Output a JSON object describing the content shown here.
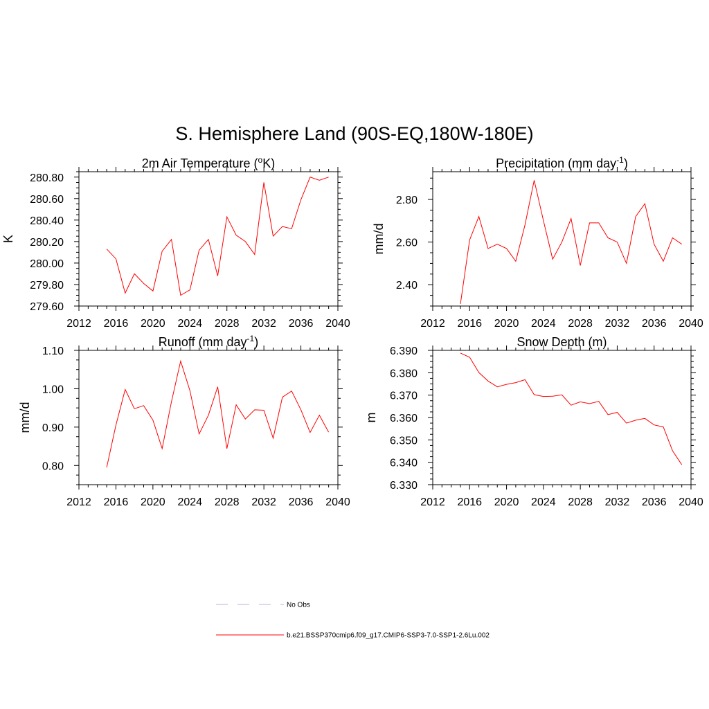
{
  "figure": {
    "title": "S. Hemisphere Land (90S-EQ,180W-180E)"
  },
  "legend": {
    "entries": [
      {
        "label": "No Obs",
        "color": "#b3b3e6",
        "style": "dashed"
      },
      {
        "label": "b.e21.BSSP370cmip6.f09_g17.CMIP6-SSP3-7.0-SSP1-2.6Lu.002",
        "color": "#ff0000",
        "style": "solid"
      }
    ]
  },
  "chart_data": [
    {
      "type": "line",
      "title": "2m Air Temperature (°K)",
      "title_base": "2m Air Temperature (",
      "title_sup": "o",
      "title_end": "K)",
      "ylabel": "K",
      "xlim": [
        2012,
        2040
      ],
      "ylim": [
        279.6,
        280.85
      ],
      "xticks": [
        2012,
        2016,
        2020,
        2024,
        2028,
        2032,
        2036,
        2040
      ],
      "yticks": [
        279.6,
        279.8,
        280.0,
        280.2,
        280.4,
        280.6,
        280.8
      ],
      "ytick_labels": [
        "279.60",
        "279.80",
        "280.00",
        "280.20",
        "280.40",
        "280.60",
        "280.80"
      ],
      "x": [
        2015,
        2016,
        2017,
        2018,
        2019,
        2020,
        2021,
        2022,
        2023,
        2024,
        2025,
        2026,
        2027,
        2028,
        2029,
        2030,
        2031,
        2032,
        2033,
        2034,
        2035,
        2036,
        2037,
        2038,
        2039
      ],
      "series": [
        {
          "color": "#ff0000",
          "values": [
            280.13,
            280.04,
            279.72,
            279.9,
            279.81,
            279.74,
            280.11,
            280.22,
            279.7,
            279.75,
            280.12,
            280.22,
            279.88,
            280.43,
            280.26,
            280.2,
            280.08,
            280.75,
            280.25,
            280.34,
            280.32,
            280.59,
            280.8,
            280.77,
            280.8
          ]
        }
      ]
    },
    {
      "type": "line",
      "title": "Precipitation (mm day-1)",
      "title_base": "Precipitation (mm day",
      "title_sup": "-1",
      "title_end": ")",
      "ylabel": "mm/d",
      "xlim": [
        2012,
        2040
      ],
      "ylim": [
        2.3,
        2.93
      ],
      "xticks": [
        2012,
        2016,
        2020,
        2024,
        2028,
        2032,
        2036,
        2040
      ],
      "yticks": [
        2.4,
        2.6,
        2.8
      ],
      "ytick_labels": [
        "2.40",
        "2.60",
        "2.80"
      ],
      "x": [
        2015,
        2016,
        2017,
        2018,
        2019,
        2020,
        2021,
        2022,
        2023,
        2024,
        2025,
        2026,
        2027,
        2028,
        2029,
        2030,
        2031,
        2032,
        2033,
        2034,
        2035,
        2036,
        2037,
        2038,
        2039
      ],
      "series": [
        {
          "color": "#ff0000",
          "values": [
            2.31,
            2.61,
            2.72,
            2.57,
            2.59,
            2.57,
            2.51,
            2.68,
            2.89,
            2.7,
            2.52,
            2.6,
            2.71,
            2.49,
            2.69,
            2.69,
            2.62,
            2.6,
            2.5,
            2.72,
            2.78,
            2.59,
            2.51,
            2.62,
            2.59
          ]
        }
      ]
    },
    {
      "type": "line",
      "title": "Runoff (mm day-1)",
      "title_base": "Runoff (mm day",
      "title_sup": "-1",
      "title_end": ")",
      "ylabel": "mm/d",
      "xlim": [
        2012,
        2040
      ],
      "ylim": [
        0.75,
        1.1
      ],
      "xticks": [
        2012,
        2016,
        2020,
        2024,
        2028,
        2032,
        2036,
        2040
      ],
      "yticks": [
        0.8,
        0.9,
        1.0,
        1.1
      ],
      "ytick_labels": [
        "0.80",
        "0.90",
        "1.00",
        "1.10"
      ],
      "x": [
        2015,
        2016,
        2017,
        2018,
        2019,
        2020,
        2021,
        2022,
        2023,
        2024,
        2025,
        2026,
        2027,
        2028,
        2029,
        2030,
        2031,
        2032,
        2033,
        2034,
        2035,
        2036,
        2037,
        2038,
        2039
      ],
      "series": [
        {
          "color": "#ff0000",
          "values": [
            0.795,
            0.905,
            0.998,
            0.948,
            0.956,
            0.918,
            0.844,
            0.966,
            1.072,
            0.995,
            0.882,
            0.931,
            1.005,
            0.844,
            0.958,
            0.921,
            0.945,
            0.944,
            0.871,
            0.978,
            0.994,
            0.945,
            0.886,
            0.931,
            0.887
          ]
        }
      ]
    },
    {
      "type": "line",
      "title": "Snow Depth (m)",
      "title_base": "Snow Depth (m)",
      "title_sup": "",
      "title_end": "",
      "ylabel": "m",
      "xlim": [
        2012,
        2040
      ],
      "ylim": [
        6.33,
        6.39
      ],
      "xticks": [
        2012,
        2016,
        2020,
        2024,
        2028,
        2032,
        2036,
        2040
      ],
      "yticks": [
        6.33,
        6.34,
        6.35,
        6.36,
        6.37,
        6.38,
        6.39
      ],
      "ytick_labels": [
        "6.330",
        "6.340",
        "6.350",
        "6.360",
        "6.370",
        "6.380",
        "6.390"
      ],
      "x": [
        2015,
        2016,
        2017,
        2018,
        2019,
        2020,
        2021,
        2022,
        2023,
        2024,
        2025,
        2026,
        2027,
        2028,
        2029,
        2030,
        2031,
        2032,
        2033,
        2034,
        2035,
        2036,
        2037,
        2038,
        2039
      ],
      "series": [
        {
          "color": "#ff0000",
          "values": [
            6.3888,
            6.3869,
            6.3801,
            6.3763,
            6.3737,
            6.3748,
            6.3756,
            6.3769,
            6.3702,
            6.3694,
            6.3695,
            6.3701,
            6.3655,
            6.367,
            6.3662,
            6.3672,
            6.3613,
            6.3623,
            6.3575,
            6.3588,
            6.3596,
            6.3567,
            6.3558,
            6.3451,
            6.3389
          ]
        }
      ]
    }
  ]
}
